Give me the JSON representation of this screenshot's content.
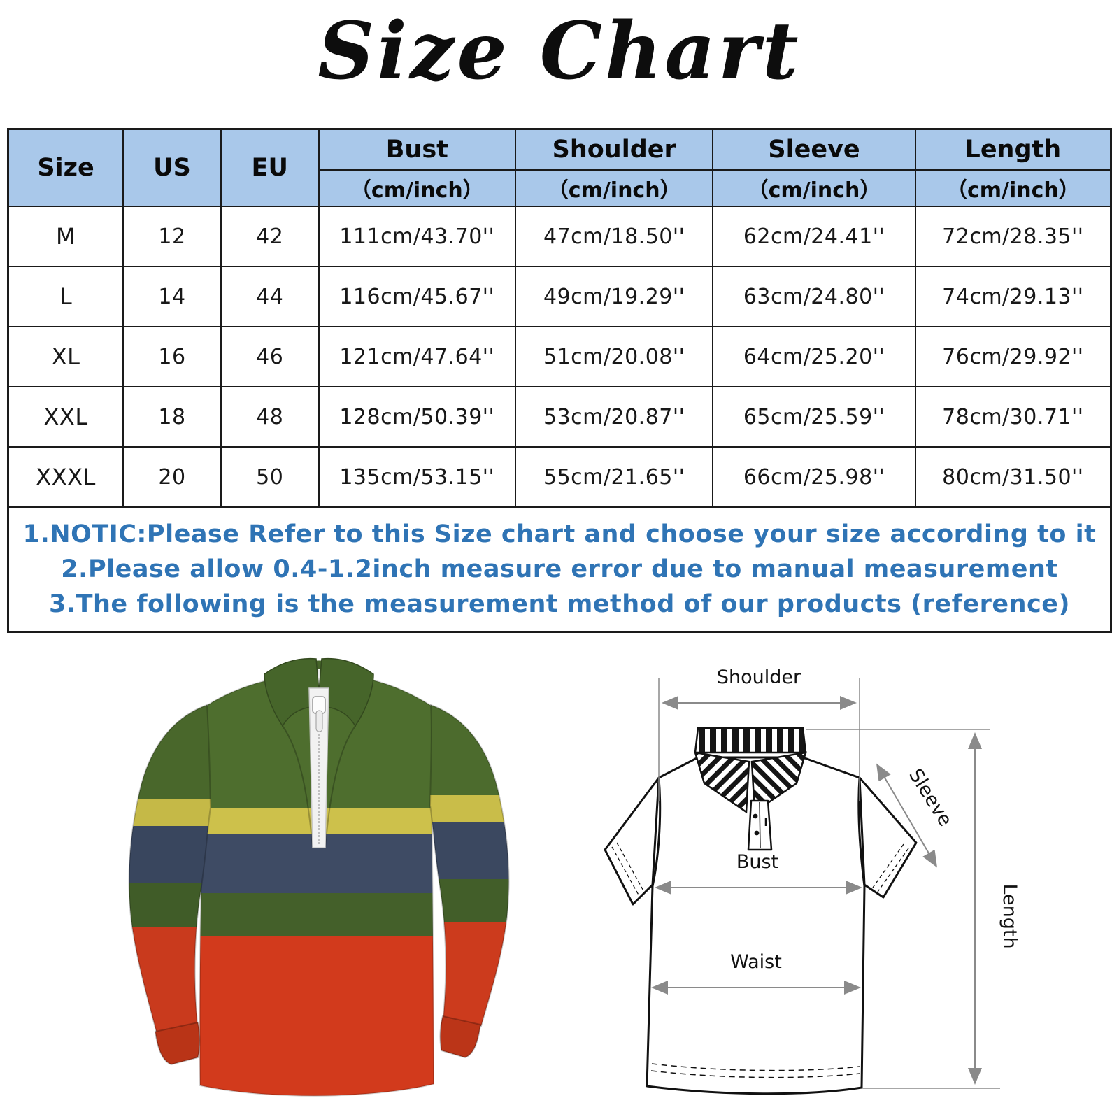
{
  "title": "Size Chart",
  "table": {
    "header": {
      "size": "Size",
      "us": "US",
      "eu": "EU",
      "bust": "Bust",
      "shoulder": "Shoulder",
      "sleeve": "Sleeve",
      "length": "Length",
      "unit": "（cm/inch）"
    },
    "rows": [
      [
        "M",
        "12",
        "42",
        "111cm/43.70''",
        "47cm/18.50''",
        "62cm/24.41''",
        "72cm/28.35''"
      ],
      [
        "L",
        "14",
        "44",
        "116cm/45.67''",
        "49cm/19.29''",
        "63cm/24.80''",
        "74cm/29.13''"
      ],
      [
        "XL",
        "16",
        "46",
        "121cm/47.64''",
        "51cm/20.08''",
        "64cm/25.20''",
        "76cm/29.92''"
      ],
      [
        "XXL",
        "18",
        "48",
        "128cm/50.39''",
        "53cm/20.87''",
        "65cm/25.59''",
        "78cm/30.71''"
      ],
      [
        "XXXL",
        "20",
        "50",
        "135cm/53.15''",
        "55cm/21.65''",
        "66cm/25.98''",
        "80cm/31.50''"
      ]
    ]
  },
  "notes": [
    "1.NOTIC:Please Refer to this Size chart and choose your size according to it",
    "2.Please allow 0.4-1.2inch measure error due to manual measurement",
    "3.The following is the measurement method of our products (reference)"
  ],
  "chart_data": {
    "type": "table",
    "columns": [
      "Size",
      "US",
      "EU",
      "Bust（cm/inch）",
      "Shoulder（cm/inch）",
      "Sleeve（cm/inch）",
      "Length（cm/inch）"
    ],
    "rows": [
      [
        "M",
        "12",
        "42",
        "111cm/43.70''",
        "47cm/18.50''",
        "62cm/24.41''",
        "72cm/28.35''"
      ],
      [
        "L",
        "14",
        "44",
        "116cm/45.67''",
        "49cm/19.29''",
        "63cm/24.80''",
        "74cm/29.13''"
      ],
      [
        "XL",
        "16",
        "46",
        "121cm/47.64''",
        "51cm/20.08''",
        "64cm/25.20''",
        "76cm/29.92''"
      ],
      [
        "XXL",
        "18",
        "48",
        "128cm/50.39''",
        "53cm/20.87''",
        "65cm/25.59''",
        "78cm/30.71''"
      ],
      [
        "XXXL",
        "20",
        "50",
        "135cm/53.15''",
        "55cm/21.65''",
        "66cm/25.98''",
        "80cm/31.50''"
      ]
    ]
  },
  "diagram_labels": {
    "shoulder": "Shoulder",
    "sleeve": "Sleeve",
    "length": "Length",
    "bust": "Bust",
    "waist": "Waist"
  },
  "colors": {
    "header_bg": "#a9c8ea",
    "table_border": "#1a1a1a",
    "note_text": "#2f74b5",
    "shirt_green": "#4e6e2e",
    "shirt_collar_green": "#46652a",
    "shirt_yellow": "#cdc14b",
    "shirt_navy": "#3e4b64",
    "shirt_red": "#d23a1c",
    "zipper_white": "#f2f2f2",
    "diagram_ink": "#111111",
    "diagram_arrow": "#8a8a8a"
  }
}
